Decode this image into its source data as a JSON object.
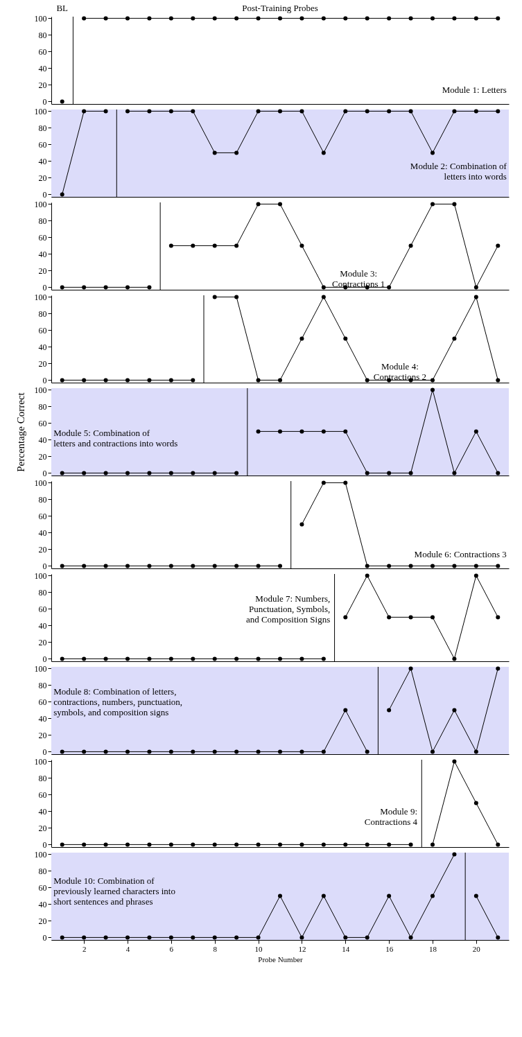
{
  "chart_data": [
    {
      "type": "line",
      "annotations": [
        "BL",
        "Post-Training Probes",
        "Module 1: Letters"
      ],
      "xlim": [
        0.5,
        21.5
      ],
      "ylim": [
        -3,
        102
      ],
      "yticks": [
        0,
        20,
        40,
        60,
        80,
        100
      ],
      "tick_labels": "y",
      "marker": "circle",
      "ref_lines": [
        {
          "axis": "x",
          "value": 1.5,
          "color": "#000000"
        }
      ],
      "series": [
        {
          "color": "#000000",
          "x": [
            1
          ],
          "values": [
            0
          ]
        },
        {
          "color": "#000000",
          "x": [
            2,
            3,
            4,
            5,
            6,
            7,
            8,
            9,
            10,
            11,
            12,
            13,
            14,
            15,
            16,
            17,
            18,
            19,
            20,
            21
          ],
          "values": [
            100,
            100,
            100,
            100,
            100,
            100,
            100,
            100,
            100,
            100,
            100,
            100,
            100,
            100,
            100,
            100,
            100,
            100,
            100,
            100
          ]
        }
      ]
    },
    {
      "type": "line",
      "annotations": [
        "Module 2: Combination of\nletters into words"
      ],
      "xlim": [
        0.5,
        21.5
      ],
      "ylim": [
        -3,
        102
      ],
      "yticks": [
        0,
        20,
        40,
        60,
        80,
        100
      ],
      "tick_labels": "y",
      "marker": "circle",
      "bands": [
        {
          "axis": "x",
          "from": 0.5,
          "to": 21.5,
          "color": "#dcdcfa"
        }
      ],
      "ref_lines": [
        {
          "axis": "x",
          "value": 3.5,
          "color": "#000000"
        }
      ],
      "series": [
        {
          "color": "#000000",
          "x": [
            1,
            2,
            3
          ],
          "values": [
            0,
            100,
            100
          ]
        },
        {
          "color": "#000000",
          "x": [
            4,
            5,
            6,
            7,
            8,
            9,
            10,
            11,
            12,
            13,
            14,
            15,
            16,
            17,
            18,
            19,
            20,
            21
          ],
          "values": [
            100,
            100,
            100,
            100,
            50,
            50,
            100,
            100,
            100,
            50,
            100,
            100,
            100,
            100,
            50,
            100,
            100,
            100
          ]
        }
      ]
    },
    {
      "type": "line",
      "annotations": [
        "Module 3:\nContractions 1"
      ],
      "xlim": [
        0.5,
        21.5
      ],
      "ylim": [
        -3,
        102
      ],
      "yticks": [
        0,
        20,
        40,
        60,
        80,
        100
      ],
      "tick_labels": "y",
      "marker": "circle",
      "ref_lines": [
        {
          "axis": "x",
          "value": 5.5,
          "color": "#000000"
        }
      ],
      "series": [
        {
          "color": "#000000",
          "x": [
            1,
            2,
            3,
            4,
            5
          ],
          "values": [
            0,
            0,
            0,
            0,
            0
          ]
        },
        {
          "color": "#000000",
          "x": [
            6,
            7,
            8,
            9,
            10,
            11,
            12,
            13,
            14,
            15,
            16,
            17,
            18,
            19,
            20,
            21
          ],
          "values": [
            50,
            50,
            50,
            50,
            100,
            100,
            50,
            0,
            0,
            0,
            0,
            50,
            100,
            100,
            0,
            50
          ]
        }
      ]
    },
    {
      "type": "line",
      "annotations": [
        "Module 4:\nContractions 2"
      ],
      "xlim": [
        0.5,
        21.5
      ],
      "ylim": [
        -3,
        102
      ],
      "yticks": [
        0,
        20,
        40,
        60,
        80,
        100
      ],
      "tick_labels": "y",
      "marker": "circle",
      "ref_lines": [
        {
          "axis": "x",
          "value": 7.5,
          "color": "#000000"
        }
      ],
      "series": [
        {
          "color": "#000000",
          "x": [
            1,
            2,
            3,
            4,
            5,
            6,
            7
          ],
          "values": [
            0,
            0,
            0,
            0,
            0,
            0,
            0
          ]
        },
        {
          "color": "#000000",
          "x": [
            8,
            9,
            10,
            11,
            12,
            13,
            14,
            15,
            16,
            17,
            18,
            19,
            20,
            21
          ],
          "values": [
            100,
            100,
            0,
            0,
            50,
            100,
            50,
            0,
            0,
            0,
            0,
            50,
            100,
            0
          ]
        }
      ]
    },
    {
      "type": "line",
      "ylabel": "Percentage Correct",
      "annotations": [
        "Module 5: Combination of\nletters and contractions into words"
      ],
      "xlim": [
        0.5,
        21.5
      ],
      "ylim": [
        -3,
        102
      ],
      "yticks": [
        0,
        20,
        40,
        60,
        80,
        100
      ],
      "tick_labels": "y",
      "marker": "circle",
      "bands": [
        {
          "axis": "x",
          "from": 0.5,
          "to": 21.5,
          "color": "#dcdcfa"
        }
      ],
      "ref_lines": [
        {
          "axis": "x",
          "value": 9.5,
          "color": "#000000"
        }
      ],
      "series": [
        {
          "color": "#000000",
          "x": [
            1,
            2,
            3,
            4,
            5,
            6,
            7,
            8,
            9
          ],
          "values": [
            0,
            0,
            0,
            0,
            0,
            0,
            0,
            0,
            0
          ]
        },
        {
          "color": "#000000",
          "x": [
            10,
            11,
            12,
            13,
            14,
            15,
            16,
            17,
            18,
            19,
            20,
            21
          ],
          "values": [
            50,
            50,
            50,
            50,
            50,
            0,
            0,
            0,
            100,
            0,
            50,
            0
          ]
        }
      ]
    },
    {
      "type": "line",
      "annotations": [
        "Module 6: Contractions 3"
      ],
      "xlim": [
        0.5,
        21.5
      ],
      "ylim": [
        -3,
        102
      ],
      "yticks": [
        0,
        20,
        40,
        60,
        80,
        100
      ],
      "tick_labels": "y",
      "marker": "circle",
      "ref_lines": [
        {
          "axis": "x",
          "value": 11.5,
          "color": "#000000"
        }
      ],
      "series": [
        {
          "color": "#000000",
          "x": [
            1,
            2,
            3,
            4,
            5,
            6,
            7,
            8,
            9,
            10,
            11
          ],
          "values": [
            0,
            0,
            0,
            0,
            0,
            0,
            0,
            0,
            0,
            0,
            0
          ]
        },
        {
          "color": "#000000",
          "x": [
            12,
            13,
            14,
            15,
            16,
            17,
            18,
            19,
            20,
            21
          ],
          "values": [
            50,
            100,
            100,
            0,
            0,
            0,
            0,
            0,
            0,
            0
          ]
        }
      ]
    },
    {
      "type": "line",
      "annotations": [
        "Module 7: Numbers,\nPunctuation, Symbols,\nand Composition Signs"
      ],
      "xlim": [
        0.5,
        21.5
      ],
      "ylim": [
        -3,
        102
      ],
      "yticks": [
        0,
        20,
        40,
        60,
        80,
        100
      ],
      "tick_labels": "y",
      "marker": "circle",
      "ref_lines": [
        {
          "axis": "x",
          "value": 13.5,
          "color": "#000000"
        }
      ],
      "series": [
        {
          "color": "#000000",
          "x": [
            1,
            2,
            3,
            4,
            5,
            6,
            7,
            8,
            9,
            10,
            11,
            12,
            13
          ],
          "values": [
            0,
            0,
            0,
            0,
            0,
            0,
            0,
            0,
            0,
            0,
            0,
            0,
            0
          ]
        },
        {
          "color": "#000000",
          "x": [
            14,
            15,
            16,
            17,
            18,
            19,
            20,
            21
          ],
          "values": [
            50,
            100,
            50,
            50,
            50,
            0,
            100,
            50
          ]
        }
      ]
    },
    {
      "type": "line",
      "annotations": [
        "Module 8: Combination of letters,\ncontractions, numbers, punctuation,\nsymbols, and composition signs"
      ],
      "xlim": [
        0.5,
        21.5
      ],
      "ylim": [
        -3,
        102
      ],
      "yticks": [
        0,
        20,
        40,
        60,
        80,
        100
      ],
      "tick_labels": "y",
      "marker": "circle",
      "bands": [
        {
          "axis": "x",
          "from": 0.5,
          "to": 21.5,
          "color": "#dcdcfa"
        }
      ],
      "ref_lines": [
        {
          "axis": "x",
          "value": 15.5,
          "color": "#000000"
        }
      ],
      "series": [
        {
          "color": "#000000",
          "x": [
            1,
            2,
            3,
            4,
            5,
            6,
            7,
            8,
            9,
            10,
            11,
            12,
            13,
            14,
            15
          ],
          "values": [
            0,
            0,
            0,
            0,
            0,
            0,
            0,
            0,
            0,
            0,
            0,
            0,
            0,
            50,
            0
          ]
        },
        {
          "color": "#000000",
          "x": [
            16,
            17,
            18,
            19,
            20,
            21
          ],
          "values": [
            50,
            100,
            0,
            50,
            0,
            100
          ]
        }
      ]
    },
    {
      "type": "line",
      "annotations": [
        "Module 9:\nContractions 4"
      ],
      "xlim": [
        0.5,
        21.5
      ],
      "ylim": [
        -3,
        102
      ],
      "yticks": [
        0,
        20,
        40,
        60,
        80,
        100
      ],
      "tick_labels": "y",
      "marker": "circle",
      "ref_lines": [
        {
          "axis": "x",
          "value": 17.5,
          "color": "#000000"
        }
      ],
      "series": [
        {
          "color": "#000000",
          "x": [
            1,
            2,
            3,
            4,
            5,
            6,
            7,
            8,
            9,
            10,
            11,
            12,
            13,
            14,
            15,
            16,
            17
          ],
          "values": [
            0,
            0,
            0,
            0,
            0,
            0,
            0,
            0,
            0,
            0,
            0,
            0,
            0,
            0,
            0,
            0,
            0
          ]
        },
        {
          "color": "#000000",
          "x": [
            18,
            19,
            20,
            21
          ],
          "values": [
            0,
            100,
            50,
            0
          ]
        }
      ]
    },
    {
      "type": "line",
      "xlabel": "Probe Number",
      "annotations": [
        "Module 10: Combination of\npreviously learned characters into\nshort sentences and phrases"
      ],
      "xlim": [
        0.5,
        21.5
      ],
      "ylim": [
        -3,
        102
      ],
      "xticks": [
        2,
        4,
        6,
        8,
        10,
        12,
        14,
        16,
        18,
        20
      ],
      "yticks": [
        0,
        20,
        40,
        60,
        80,
        100
      ],
      "marker": "circle",
      "bands": [
        {
          "axis": "x",
          "from": 0.5,
          "to": 21.5,
          "color": "#dcdcfa"
        }
      ],
      "ref_lines": [
        {
          "axis": "x",
          "value": 19.5,
          "color": "#000000"
        }
      ],
      "series": [
        {
          "color": "#000000",
          "x": [
            1,
            2,
            3,
            4,
            5,
            6,
            7,
            8,
            9,
            10,
            11,
            12,
            13,
            14,
            15,
            16,
            17,
            18,
            19
          ],
          "values": [
            0,
            0,
            0,
            0,
            0,
            0,
            0,
            0,
            0,
            0,
            50,
            0,
            50,
            0,
            0,
            50,
            0,
            50,
            100
          ]
        },
        {
          "color": "#000000",
          "x": [
            20,
            21
          ],
          "values": [
            50,
            0
          ]
        }
      ]
    }
  ]
}
